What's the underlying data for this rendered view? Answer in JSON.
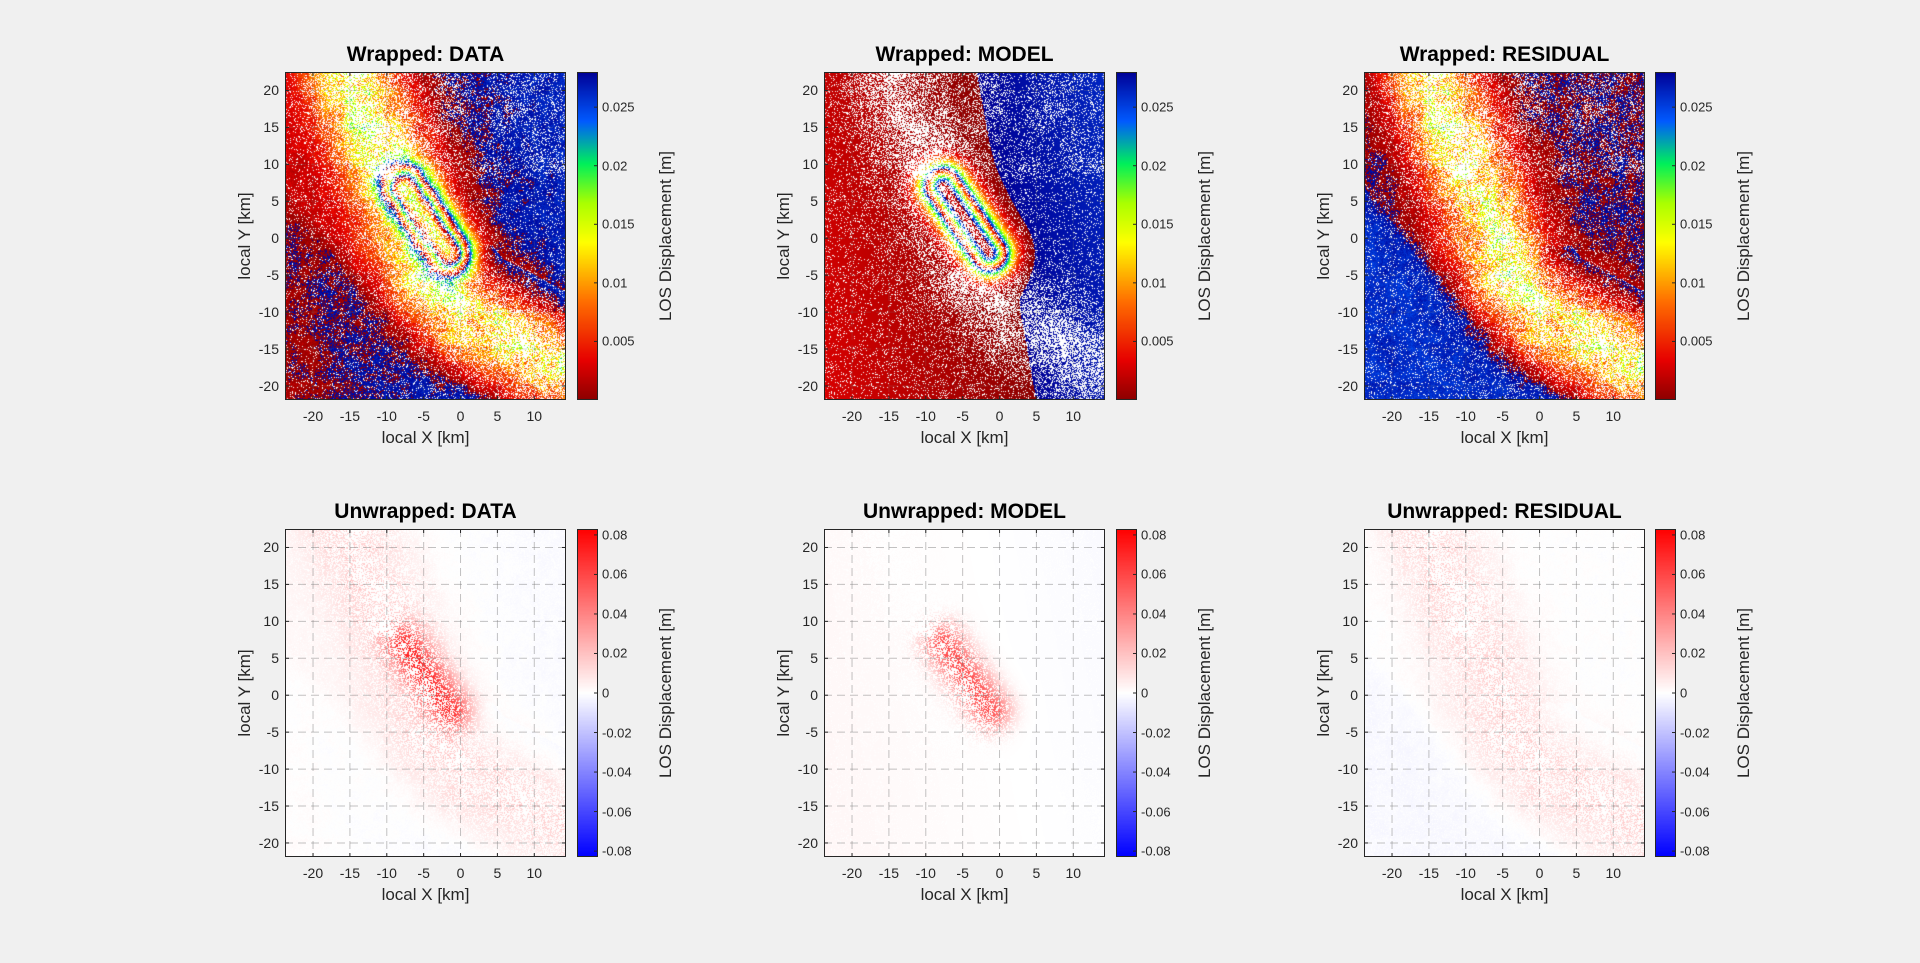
{
  "chart_data": [
    {
      "type": "heatmap",
      "field": "data",
      "mode": "wrapped",
      "title": "Wrapped: DATA",
      "xlabel": "local X [km]",
      "ylabel": "local Y [km]",
      "xlim": [
        -23.8,
        14.3
      ],
      "ylim": [
        -21.9,
        22.5
      ],
      "xticks": [
        "-20",
        "-15",
        "-10",
        "-5",
        "0",
        "5",
        "10"
      ],
      "yticks": [
        "-20",
        "-15",
        "-10",
        "-5",
        "0",
        "5",
        "10",
        "15",
        "20"
      ],
      "grid": true,
      "colorbar": {
        "label": "LOS Displacement [m]",
        "clim": [
          0,
          0.028
        ],
        "ticks": [
          "0.005",
          "0.01",
          "0.015",
          "0.02",
          "0.025"
        ],
        "colormap": "red-yellow-green-blue (wrapped)"
      }
    },
    {
      "type": "heatmap",
      "field": "model",
      "mode": "wrapped",
      "title": "Wrapped: MODEL",
      "xlabel": "local X [km]",
      "ylabel": "local Y [km]",
      "xlim": [
        -23.8,
        14.3
      ],
      "ylim": [
        -21.9,
        22.5
      ],
      "xticks": [
        "-20",
        "-15",
        "-10",
        "-5",
        "0",
        "5",
        "10"
      ],
      "yticks": [
        "-20",
        "-15",
        "-10",
        "-5",
        "0",
        "5",
        "10",
        "15",
        "20"
      ],
      "grid": true,
      "colorbar": {
        "label": "LOS Displacement [m]",
        "clim": [
          0,
          0.028
        ],
        "ticks": [
          "0.005",
          "0.01",
          "0.015",
          "0.02",
          "0.025"
        ],
        "colormap": "red-yellow-green-blue (wrapped)"
      }
    },
    {
      "type": "heatmap",
      "field": "residual",
      "mode": "wrapped",
      "title": "Wrapped: RESIDUAL",
      "xlabel": "local X [km]",
      "ylabel": "local Y [km]",
      "xlim": [
        -23.8,
        14.3
      ],
      "ylim": [
        -21.9,
        22.5
      ],
      "xticks": [
        "-20",
        "-15",
        "-10",
        "-5",
        "0",
        "5",
        "10"
      ],
      "yticks": [
        "-20",
        "-15",
        "-10",
        "-5",
        "0",
        "5",
        "10",
        "15",
        "20"
      ],
      "grid": true,
      "colorbar": {
        "label": "LOS Displacement [m]",
        "clim": [
          0,
          0.028
        ],
        "ticks": [
          "0.005",
          "0.01",
          "0.015",
          "0.02",
          "0.025"
        ],
        "colormap": "red-yellow-green-blue (wrapped)"
      }
    },
    {
      "type": "heatmap",
      "field": "data",
      "mode": "unwrapped",
      "title": "Unwrapped: DATA",
      "xlabel": "local X [km]",
      "ylabel": "local Y [km]",
      "xlim": [
        -23.8,
        14.3
      ],
      "ylim": [
        -21.9,
        22.5
      ],
      "xticks": [
        "-20",
        "-15",
        "-10",
        "-5",
        "0",
        "5",
        "10"
      ],
      "yticks": [
        "-20",
        "-15",
        "-10",
        "-5",
        "0",
        "5",
        "10",
        "15",
        "20"
      ],
      "grid": true,
      "colorbar": {
        "label": "LOS Displacement [m]",
        "clim": [
          -0.083,
          0.083
        ],
        "ticks": [
          "-0.08",
          "-0.06",
          "-0.04",
          "-0.02",
          "0",
          "0.02",
          "0.04",
          "0.06",
          "0.08"
        ],
        "colormap": "blue-white-red"
      }
    },
    {
      "type": "heatmap",
      "field": "model",
      "mode": "unwrapped",
      "title": "Unwrapped: MODEL",
      "xlabel": "local X [km]",
      "ylabel": "local Y [km]",
      "xlim": [
        -23.8,
        14.3
      ],
      "ylim": [
        -21.9,
        22.5
      ],
      "xticks": [
        "-20",
        "-15",
        "-10",
        "-5",
        "0",
        "5",
        "10"
      ],
      "yticks": [
        "-20",
        "-15",
        "-10",
        "-5",
        "0",
        "5",
        "10",
        "15",
        "20"
      ],
      "grid": true,
      "colorbar": {
        "label": "LOS Displacement [m]",
        "clim": [
          -0.083,
          0.083
        ],
        "ticks": [
          "-0.08",
          "-0.06",
          "-0.04",
          "-0.02",
          "0",
          "0.02",
          "0.04",
          "0.06",
          "0.08"
        ],
        "colormap": "blue-white-red"
      }
    },
    {
      "type": "heatmap",
      "field": "residual",
      "mode": "unwrapped",
      "title": "Unwrapped: RESIDUAL",
      "xlabel": "local X [km]",
      "ylabel": "local Y [km]",
      "xlim": [
        -23.8,
        14.3
      ],
      "ylim": [
        -21.9,
        22.5
      ],
      "xticks": [
        "-20",
        "-15",
        "-10",
        "-5",
        "0",
        "5",
        "10"
      ],
      "yticks": [
        "-20",
        "-15",
        "-10",
        "-5",
        "0",
        "5",
        "10",
        "15",
        "20"
      ],
      "grid": true,
      "colorbar": {
        "label": "LOS Displacement [m]",
        "clim": [
          -0.083,
          0.083
        ],
        "ticks": [
          "-0.08",
          "-0.06",
          "-0.04",
          "-0.02",
          "0",
          "0.02",
          "0.04",
          "0.06",
          "0.08"
        ],
        "colormap": "blue-white-red"
      }
    }
  ],
  "colors": {
    "background": "#f0f0f0",
    "axes": "#262626",
    "nan": "#ffffff"
  }
}
